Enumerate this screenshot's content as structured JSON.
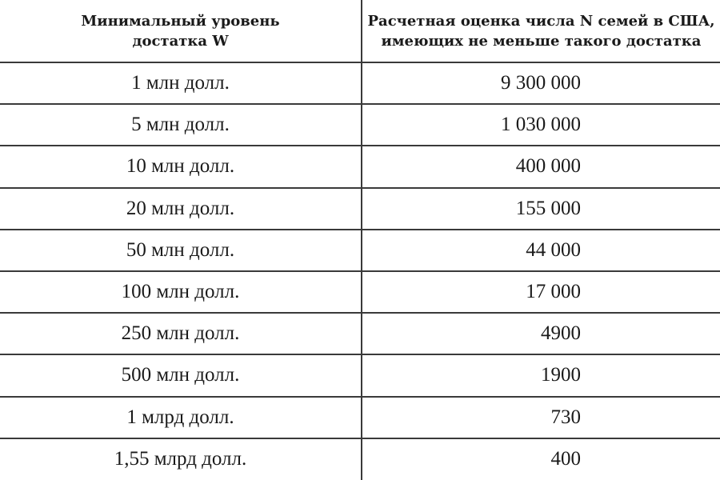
{
  "header": {
    "col1_line1": "Минимальный уровень",
    "col1_line2": "достатка W",
    "col2_line1": "Расчетная оценка числа N семей в США,",
    "col2_line2": "имеющих не меньше такого достатка"
  },
  "rows": [
    {
      "wealth": "1 млн долл.",
      "families": "9 300 000"
    },
    {
      "wealth": "5 млн долл.",
      "families": "1 030 000"
    },
    {
      "wealth": "10 млн долл.",
      "families": "400 000"
    },
    {
      "wealth": "20 млн долл.",
      "families": "155 000"
    },
    {
      "wealth": "50 млн долл.",
      "families": "44 000"
    },
    {
      "wealth": "100 млн долл.",
      "families": "17 000"
    },
    {
      "wealth": "250 млн долл.",
      "families": "4900"
    },
    {
      "wealth": "500 млн долл.",
      "families": "1900"
    },
    {
      "wealth": "1 млрд долл.",
      "families": "730"
    },
    {
      "wealth": "1,55 млрд долл.",
      "families": "400"
    }
  ]
}
